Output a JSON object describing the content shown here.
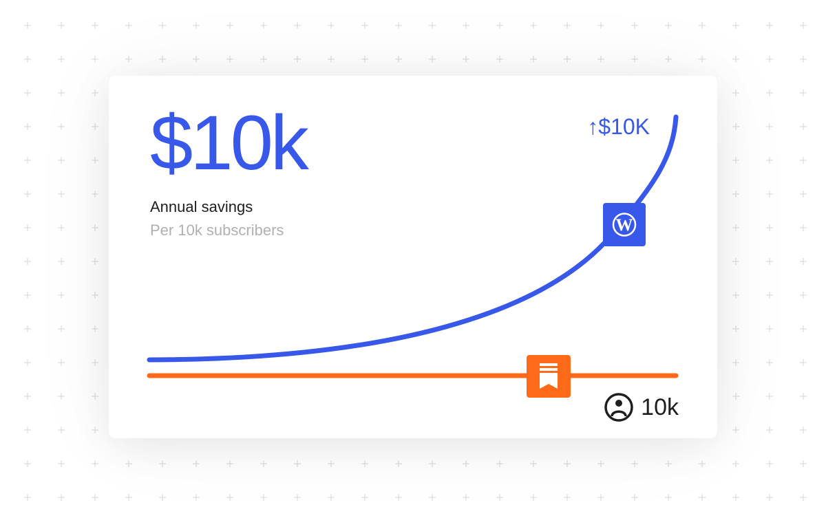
{
  "headline": {
    "value": "$10k",
    "label": "Annual savings",
    "sublabel": "Per 10k subscribers"
  },
  "curve": {
    "end_label": "↑$10K",
    "color": "#3858e9",
    "marker_icon": "wordpress-icon"
  },
  "baseline": {
    "color": "#ff6a1a",
    "marker_icon": "bookmark-icon"
  },
  "subscribers": {
    "icon": "user-circle-icon",
    "value": "10k"
  }
}
